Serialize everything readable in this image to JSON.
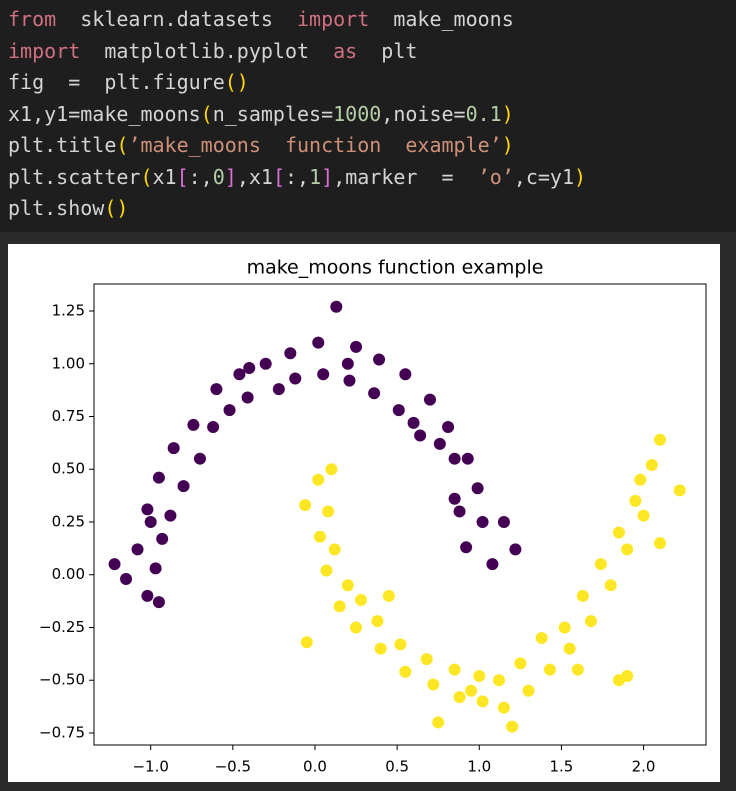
{
  "code": {
    "lines": [
      [
        {
          "text": "from",
          "color": "#d0707f"
        },
        {
          "text": "  sklearn.datasets  ",
          "color": "#d4d4d4"
        },
        {
          "text": "import",
          "color": "#d0707f"
        },
        {
          "text": "  make_moons",
          "color": "#d4d4d4"
        }
      ],
      [
        {
          "text": "import",
          "color": "#d0707f"
        },
        {
          "text": "  matplotlib.pyplot  ",
          "color": "#d4d4d4"
        },
        {
          "text": "as",
          "color": "#d0707f"
        },
        {
          "text": "  plt",
          "color": "#d4d4d4"
        }
      ],
      [
        {
          "text": "fig  =  plt.figure",
          "color": "#d4d4d4"
        },
        {
          "text": "()",
          "color": "#ffd700"
        }
      ],
      [
        {
          "text": "x1,y1=make_moons",
          "color": "#d4d4d4"
        },
        {
          "text": "(",
          "color": "#ffd700"
        },
        {
          "text": "n_samples=",
          "color": "#d4d4d4"
        },
        {
          "text": "1000",
          "color": "#b5cea8"
        },
        {
          "text": ",noise=",
          "color": "#d4d4d4"
        },
        {
          "text": "0.1",
          "color": "#b5cea8"
        },
        {
          "text": ")",
          "color": "#ffd700"
        }
      ],
      [
        {
          "text": "plt.title",
          "color": "#d4d4d4"
        },
        {
          "text": "(",
          "color": "#ffd700"
        },
        {
          "text": "’make_moons  function  example’",
          "color": "#ce9178"
        },
        {
          "text": ")",
          "color": "#ffd700"
        }
      ],
      [
        {
          "text": "plt.scatter",
          "color": "#d4d4d4"
        },
        {
          "text": "(",
          "color": "#ffd700"
        },
        {
          "text": "x1",
          "color": "#d4d4d4"
        },
        {
          "text": "[",
          "color": "#da70d6"
        },
        {
          "text": ":,",
          "color": "#d4d4d4"
        },
        {
          "text": "0",
          "color": "#b5cea8"
        },
        {
          "text": "]",
          "color": "#da70d6"
        },
        {
          "text": ",x1",
          "color": "#d4d4d4"
        },
        {
          "text": "[",
          "color": "#da70d6"
        },
        {
          "text": ":,",
          "color": "#d4d4d4"
        },
        {
          "text": "1",
          "color": "#b5cea8"
        },
        {
          "text": "]",
          "color": "#da70d6"
        },
        {
          "text": ",marker  =  ",
          "color": "#d4d4d4"
        },
        {
          "text": "’o’",
          "color": "#ce9178"
        },
        {
          "text": ",c=y1",
          "color": "#d4d4d4"
        },
        {
          "text": ")",
          "color": "#ffd700"
        }
      ],
      [
        {
          "text": "plt.show",
          "color": "#d4d4d4"
        },
        {
          "text": "()",
          "color": "#ffd700"
        }
      ]
    ]
  },
  "chart_data": {
    "type": "scatter",
    "title": "make_moons function example",
    "xlim": [
      -1.345,
      2.38
    ],
    "ylim": [
      -0.807,
      1.378
    ],
    "xticks": [
      {
        "value": -1.0,
        "label": "−1.0"
      },
      {
        "value": -0.5,
        "label": "−0.5"
      },
      {
        "value": 0.0,
        "label": "0.0"
      },
      0.5,
      {
        "value": 1.0,
        "label": "1.0"
      },
      1.5,
      {
        "value": 2.0,
        "label": "2.0"
      }
    ],
    "yticks": [
      {
        "value": -0.75,
        "label": "−0.75"
      },
      {
        "value": -0.5,
        "label": "−0.50"
      },
      {
        "value": -0.25,
        "label": "−0.25"
      },
      {
        "value": 0.0,
        "label": "0.00"
      },
      0.25,
      {
        "value": 0.5,
        "label": "0.50"
      },
      0.75,
      {
        "value": 1.0,
        "label": "1.00"
      },
      1.25
    ],
    "series": [
      {
        "color": "#440154",
        "x": [
          1.08,
          0.92,
          1.02,
          0.88,
          0.99,
          0.85,
          0.93,
          0.76,
          0.81,
          0.64,
          0.7,
          0.51,
          0.55,
          0.36,
          0.39,
          0.21,
          0.25,
          0.05,
          0.02,
          -0.12,
          -0.15,
          -0.22,
          -0.3,
          -0.41,
          -0.46,
          -0.52,
          -0.6,
          -0.62,
          -0.74,
          -0.7,
          -0.86,
          -0.8,
          -0.95,
          -0.88,
          -1.02,
          -0.93,
          -1.08,
          -0.97,
          -1.15,
          -1.02,
          0.13,
          1.22,
          -1.22,
          -0.95,
          0.85,
          0.2,
          -0.4,
          1.15,
          -1.0,
          0.6
        ],
        "values": [
          0.05,
          0.13,
          0.25,
          0.3,
          0.41,
          0.36,
          0.55,
          0.62,
          0.7,
          0.66,
          0.83,
          0.78,
          0.95,
          0.86,
          1.02,
          0.92,
          1.08,
          0.95,
          1.1,
          0.93,
          1.05,
          0.88,
          1.0,
          0.84,
          0.95,
          0.78,
          0.88,
          0.7,
          0.71,
          0.55,
          0.6,
          0.42,
          0.46,
          0.28,
          0.31,
          0.17,
          0.12,
          0.03,
          -0.02,
          -0.1,
          1.27,
          0.12,
          0.05,
          -0.13,
          0.55,
          1.0,
          0.98,
          0.25,
          0.25,
          0.72
        ]
      },
      {
        "color": "#fde725",
        "x": [
          0.02,
          -0.06,
          0.08,
          0.03,
          0.12,
          0.07,
          0.2,
          0.15,
          0.28,
          0.25,
          0.38,
          0.4,
          0.52,
          0.55,
          0.68,
          0.72,
          0.85,
          0.88,
          1.0,
          1.02,
          1.12,
          1.15,
          1.25,
          1.3,
          1.38,
          1.43,
          1.52,
          1.55,
          1.63,
          1.68,
          1.74,
          1.8,
          1.85,
          1.9,
          1.95,
          2.0,
          2.05,
          1.98,
          2.1,
          2.22,
          -0.05,
          1.85,
          1.9,
          0.75,
          1.2,
          0.1,
          2.1,
          0.45,
          1.6,
          0.95
        ],
        "values": [
          0.45,
          0.33,
          0.3,
          0.18,
          0.12,
          0.02,
          -0.05,
          -0.15,
          -0.12,
          -0.25,
          -0.22,
          -0.35,
          -0.33,
          -0.46,
          -0.4,
          -0.52,
          -0.45,
          -0.58,
          -0.48,
          -0.6,
          -0.5,
          -0.63,
          -0.42,
          -0.55,
          -0.3,
          -0.45,
          -0.25,
          -0.35,
          -0.1,
          -0.22,
          0.05,
          -0.05,
          0.2,
          0.12,
          0.35,
          0.28,
          0.52,
          0.45,
          0.64,
          0.4,
          -0.32,
          -0.5,
          -0.48,
          -0.7,
          -0.72,
          0.5,
          0.15,
          -0.1,
          -0.45,
          -0.55
        ]
      }
    ]
  }
}
